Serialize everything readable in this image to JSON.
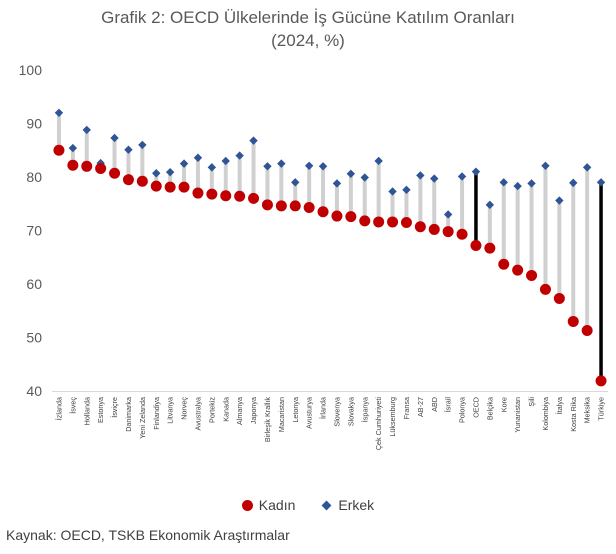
{
  "chart_data": {
    "type": "dot",
    "title": "Grafik 2: OECD Ülkelerinde İş Gücüne Katılım Oranları",
    "subtitle": "(2024, %)",
    "ylim": [
      40,
      100
    ],
    "yticks": [
      40,
      50,
      60,
      70,
      80,
      90,
      100
    ],
    "categories": [
      "İzlanda",
      "İsveç",
      "Hollanda",
      "Estonya",
      "İsviçre",
      "Danimarka",
      "Yeni Zelanda",
      "Finlandiya",
      "Litvanya",
      "Norveç",
      "Avustralya",
      "Portekiz",
      "Kanada",
      "Almanya",
      "Japonya",
      "Birleşik Krallık",
      "Macaristan",
      "Letonya",
      "Avusturya",
      "İrlanda",
      "Slovenya",
      "Slovakya",
      "İspanya",
      "Çek Cumhuriyeti",
      "Lüksemburg",
      "Fransa",
      "AB-27",
      "ABD",
      "İsrail",
      "Polonya",
      "OECD",
      "Belçika",
      "Kore",
      "Yunanistan",
      "Şili",
      "Kolombiya",
      "İtalya",
      "Kosta Rika",
      "Meksika",
      "Türkiye"
    ],
    "highlight": [
      "OECD",
      "Türkiye"
    ],
    "series": [
      {
        "name": "Kadın",
        "values": [
          85.0,
          82.2,
          82.0,
          81.6,
          80.7,
          79.5,
          79.2,
          78.3,
          78.1,
          78.1,
          77.0,
          76.8,
          76.5,
          76.4,
          76.0,
          74.8,
          74.6,
          74.6,
          74.3,
          73.5,
          72.7,
          72.6,
          71.8,
          71.6,
          71.6,
          71.5,
          70.7,
          70.2,
          69.8,
          69.3,
          67.2,
          66.7,
          63.7,
          62.6,
          61.6,
          59.0,
          57.3,
          53.0,
          51.3,
          41.9
        ]
      },
      {
        "name": "Erkek",
        "values": [
          92.0,
          85.4,
          88.8,
          82.6,
          87.3,
          85.1,
          86.0,
          80.7,
          80.9,
          82.5,
          83.6,
          81.8,
          83.0,
          84.0,
          86.8,
          82.0,
          82.5,
          79.0,
          82.1,
          82.0,
          78.8,
          80.6,
          79.9,
          83.0,
          77.3,
          77.6,
          80.3,
          79.7,
          73.0,
          80.1,
          81.0,
          74.8,
          79.0,
          78.3,
          78.8,
          82.1,
          75.6,
          78.9,
          81.8,
          79.0
        ]
      }
    ]
  },
  "legend": {
    "female": "Kadın",
    "male": "Erkek"
  },
  "source": "Kaynak: OECD, TSKB Ekonomik Araştırmalar",
  "colors": {
    "female": "#c00000",
    "male": "#2f5597",
    "connector": "#d0d0d0",
    "highlight": "#000000"
  }
}
